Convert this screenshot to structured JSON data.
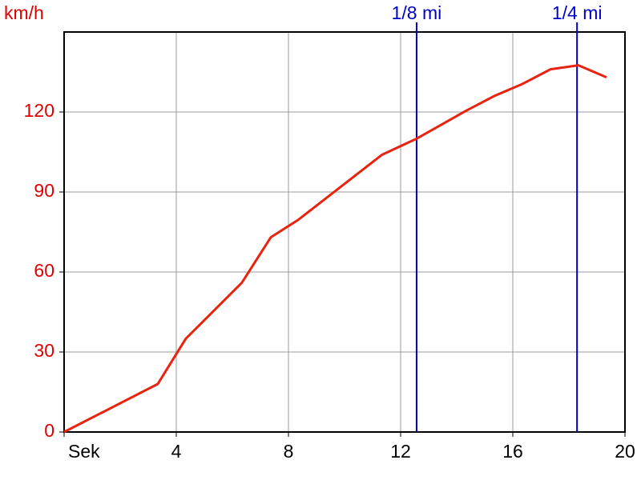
{
  "chart_data": {
    "type": "line",
    "y_label": "km/h",
    "x": [
      0,
      3.34,
      4.34,
      6.34,
      7.37,
      8.34,
      11.34,
      12.57,
      14.34,
      15.34,
      16.34,
      17.34,
      18.34,
      19.34
    ],
    "series": [
      {
        "color": "#e8230f",
        "values": [
          0,
          18,
          35,
          56,
          73,
          79.5,
          104,
          110,
          120.5,
          126,
          130.5,
          136,
          137.5,
          133
        ]
      }
    ],
    "xlim": [
      0,
      20
    ],
    "ylim": [
      0,
      150
    ],
    "xticks": [
      {
        "value": 0,
        "label": "Sek"
      },
      4,
      8,
      12,
      16,
      20
    ],
    "yticks": [
      0,
      30,
      60,
      90,
      120
    ],
    "grid": true,
    "ytick_color": "#e00000",
    "xtick_color": "#000000",
    "markers": [
      {
        "label": "1/8 mi",
        "x": 12.57,
        "color": "#0000cc"
      },
      {
        "label": "1/4 mi",
        "x": 18.29,
        "color": "#0000cc"
      }
    ]
  }
}
